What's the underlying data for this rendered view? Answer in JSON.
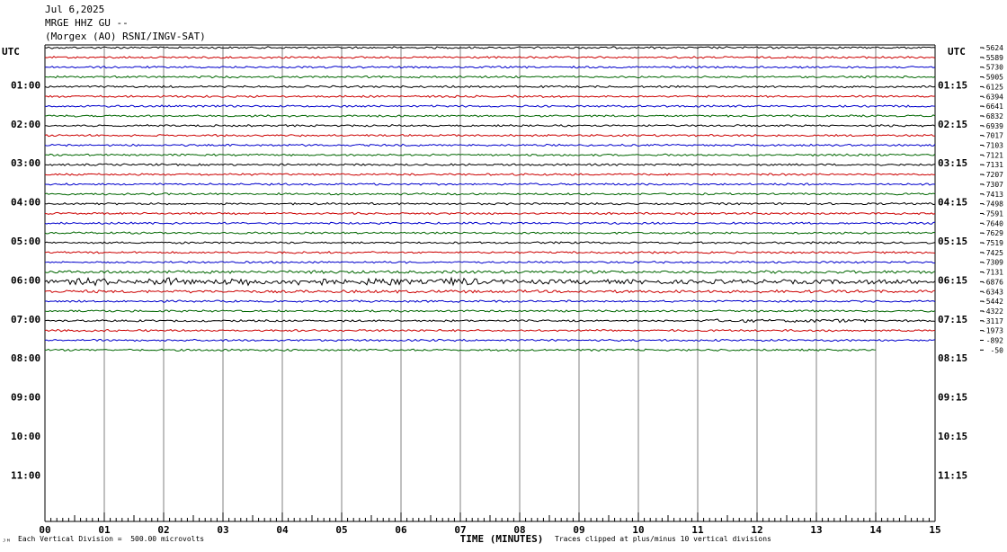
{
  "header": {
    "date": "Jul 6,2025",
    "station": "MRGE HHZ GU --",
    "network": "(Morgex (AO) RSNI/INGV-SAT)"
  },
  "chart_data": {
    "type": "line",
    "title": "",
    "left_timezone": "UTC",
    "right_timezone": "UTC",
    "left_hour_labels": [
      "01:00",
      "02:00",
      "03:00",
      "04:00",
      "05:00",
      "06:00",
      "07:00",
      "08:00",
      "09:00",
      "10:00",
      "11:00"
    ],
    "right_hour_labels": [
      "01:15",
      "02:15",
      "03:15",
      "04:15",
      "05:15",
      "06:15",
      "07:15",
      "08:15",
      "09:15",
      "10:15",
      "11:15"
    ],
    "x_ticks": [
      "00",
      "01",
      "02",
      "03",
      "04",
      "05",
      "06",
      "07",
      "08",
      "09",
      "10",
      "11",
      "12",
      "13",
      "14",
      "15"
    ],
    "xlim": [
      0,
      15
    ],
    "xlabel": "TIME (MINUTES)",
    "trace_offsets": [
      "-5624",
      "-5589",
      "-5730",
      "-5905",
      "-6125",
      "-6394",
      "-6641",
      "-6832",
      "-6939",
      "-7017",
      "-7103",
      "-7121",
      "-7131",
      "-7207",
      "-7307",
      "-7413",
      "-7498",
      "-7591",
      "-7640",
      "-7629",
      "-7519",
      "-7425",
      "-7309",
      "-7131",
      "-6876",
      "-6343",
      "-5442",
      "-4322",
      "-3117",
      "-1973",
      "-892",
      "-50"
    ],
    "trace_colors": [
      "#000000",
      "#cc0000",
      "#0000cc",
      "#006600"
    ],
    "trace_count": 32,
    "last_trace_end_minute": 14,
    "traces_per_hour": 4,
    "minutes_per_trace": 15,
    "scale_note": "Each Vertical Division =  500.00 microvolts",
    "clip_note": "Traces clipped at plus/minus 10 vertical divisions",
    "grid": true
  },
  "footer": {
    "logo_mark": "ᴶᴹ"
  }
}
